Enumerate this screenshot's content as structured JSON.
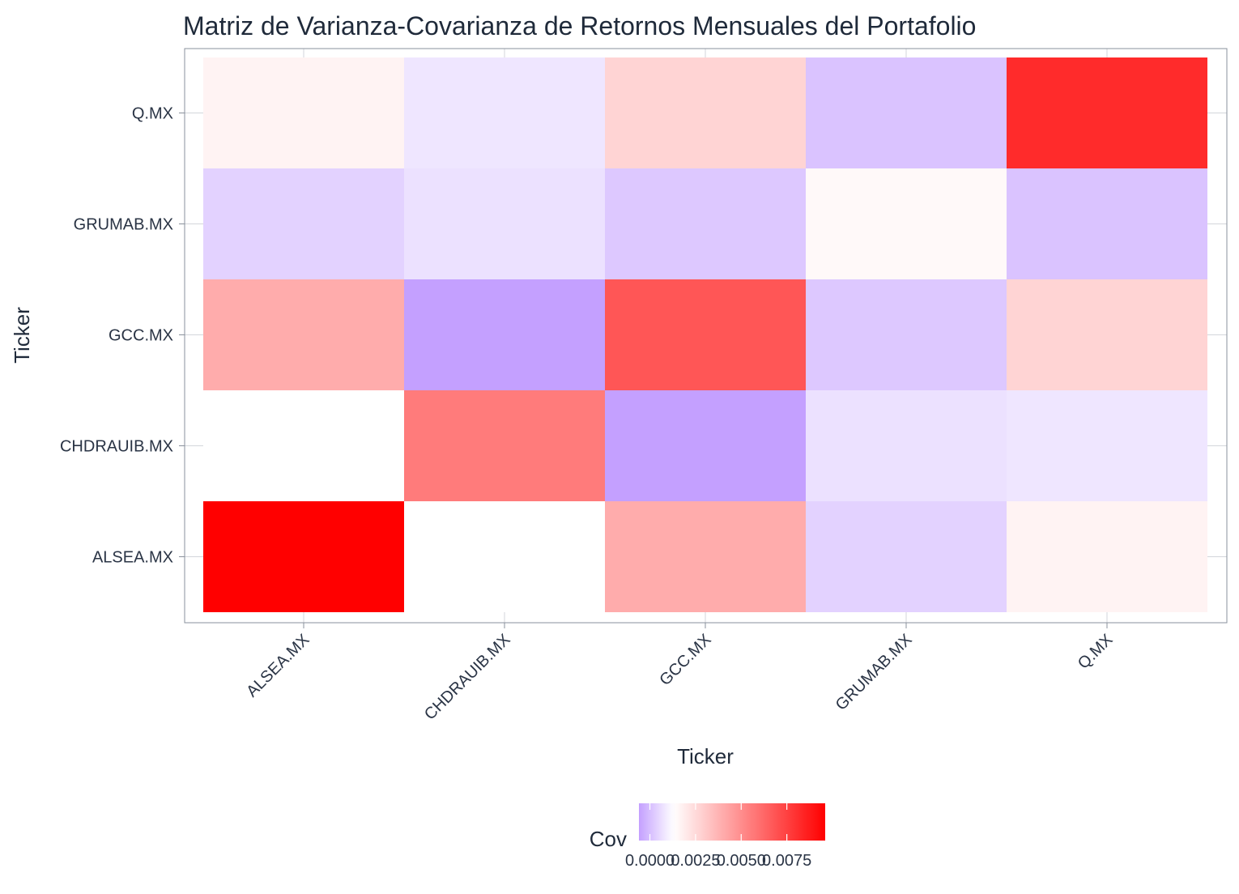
{
  "chart_data": {
    "type": "heatmap",
    "title": "Matriz de Varianza-Covarianza de Retornos Mensuales del Portafolio",
    "xlabel": "Ticker",
    "ylabel": "Ticker",
    "x_categories": [
      "ALSEA.MX",
      "CHDRAUIB.MX",
      "GCC.MX",
      "GRUMAB.MX",
      "Q.MX"
    ],
    "y_categories": [
      "ALSEA.MX",
      "CHDRAUIB.MX",
      "GCC.MX",
      "GRUMAB.MX",
      "Q.MX"
    ],
    "matrix": [
      [
        0.0096,
        0.0013,
        0.004,
        0.0004,
        0.0017
      ],
      [
        0.0013,
        0.0056,
        -0.0006,
        0.0007,
        0.0008
      ],
      [
        0.004,
        -0.0006,
        0.0068,
        0.0002,
        0.0027
      ],
      [
        0.0004,
        0.0007,
        0.0002,
        0.0015,
        0.0001
      ],
      [
        0.0017,
        0.0008,
        0.0027,
        0.0001,
        0.0082
      ]
    ],
    "legend": {
      "title": "Cov",
      "ticks": [
        0.0,
        0.0025,
        0.005,
        0.0075
      ],
      "tick_labels": [
        "0.0000",
        "0.0025",
        "0.0050",
        "0.0075"
      ],
      "range": [
        -0.0006,
        0.0096
      ],
      "placement": "bottom"
    },
    "colors": {
      "low": "#c4a0ff",
      "mid": "#ffffff",
      "high": "#ff0000",
      "midpoint": 0.0013
    },
    "grid": true
  }
}
